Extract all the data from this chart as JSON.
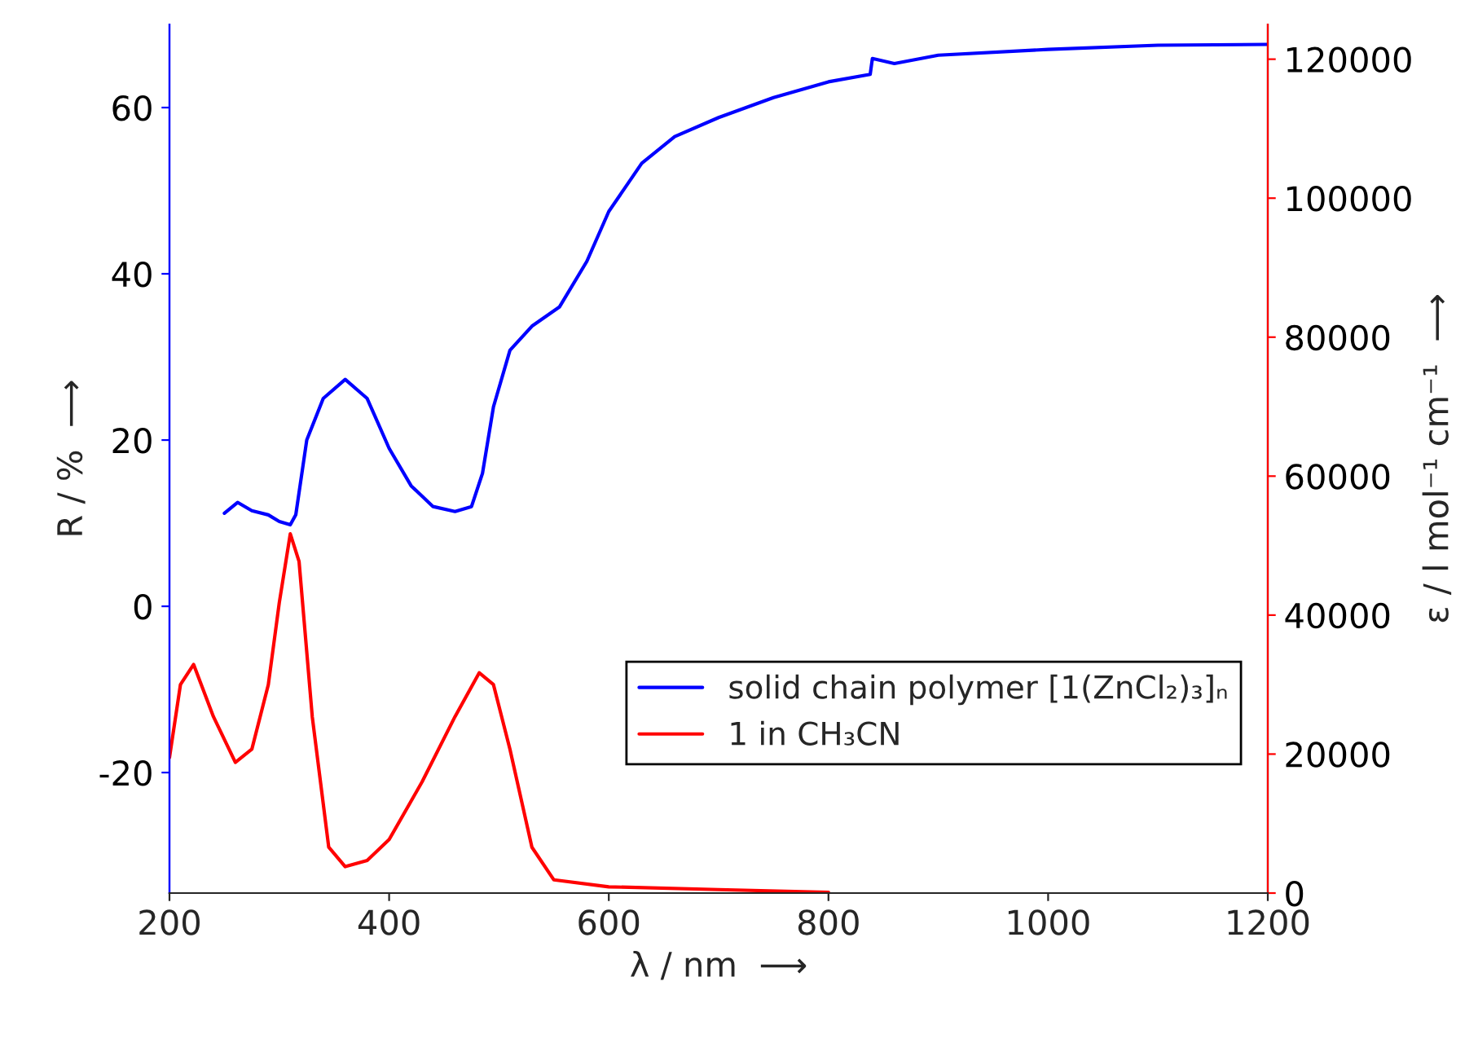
{
  "chart_data": {
    "type": "line",
    "xlabel": "λ / nm  ⟶",
    "ylabel": "R / %  ⟶",
    "y2label": "ε / l mol⁻¹ cm⁻¹  ⟶",
    "xlim": [
      200,
      1200
    ],
    "xticks": [
      200,
      400,
      600,
      800,
      1000,
      1200
    ],
    "ylim": [
      -34.5,
      70
    ],
    "yticks": [
      -20,
      0,
      20,
      40,
      60
    ],
    "y2lim": [
      0,
      125000
    ],
    "y2ticks": [
      0,
      20000,
      40000,
      60000,
      80000,
      100000,
      120000
    ],
    "grid": false,
    "legend": "bottom right",
    "marker": "none",
    "line_style": "solid",
    "series": [
      {
        "name": "solid chain polymer [1(ZnCl₂)₃]ₙ",
        "color": "#0000ff",
        "x": [
          250,
          262,
          275,
          290,
          300,
          310,
          315,
          325,
          340,
          360,
          380,
          400,
          420,
          440,
          460,
          475,
          485,
          495,
          510,
          530,
          555,
          580,
          600,
          630,
          660,
          700,
          750,
          800,
          838,
          840,
          860,
          900,
          1000,
          1100,
          1200
        ],
        "values": [
          11.2,
          12.5,
          11.5,
          11,
          10.2,
          9.8,
          11,
          20,
          25,
          27.3,
          25,
          19,
          14.5,
          12,
          11.4,
          12,
          16,
          24,
          30.8,
          33.7,
          36,
          41.5,
          47.5,
          53.3,
          56.5,
          58.8,
          61.2,
          63.1,
          64,
          65.9,
          65.3,
          66.3,
          67,
          67.5,
          67.6
        ]
      },
      {
        "name": "1 in CH₃CN",
        "color": "#ff0000",
        "axis": "y2",
        "x": [
          200,
          210,
          222,
          240,
          260,
          275,
          290,
          300,
          310,
          318,
          330,
          345,
          360,
          380,
          400,
          430,
          460,
          482,
          495,
          510,
          530,
          550,
          600,
          700,
          800
        ],
        "values": [
          19500,
          30000,
          32900,
          25400,
          18800,
          20700,
          30000,
          41800,
          51700,
          47700,
          25400,
          6600,
          3800,
          4700,
          7700,
          16000,
          25400,
          31700,
          30000,
          20700,
          6600,
          1900,
          900,
          500,
          100
        ]
      }
    ]
  }
}
